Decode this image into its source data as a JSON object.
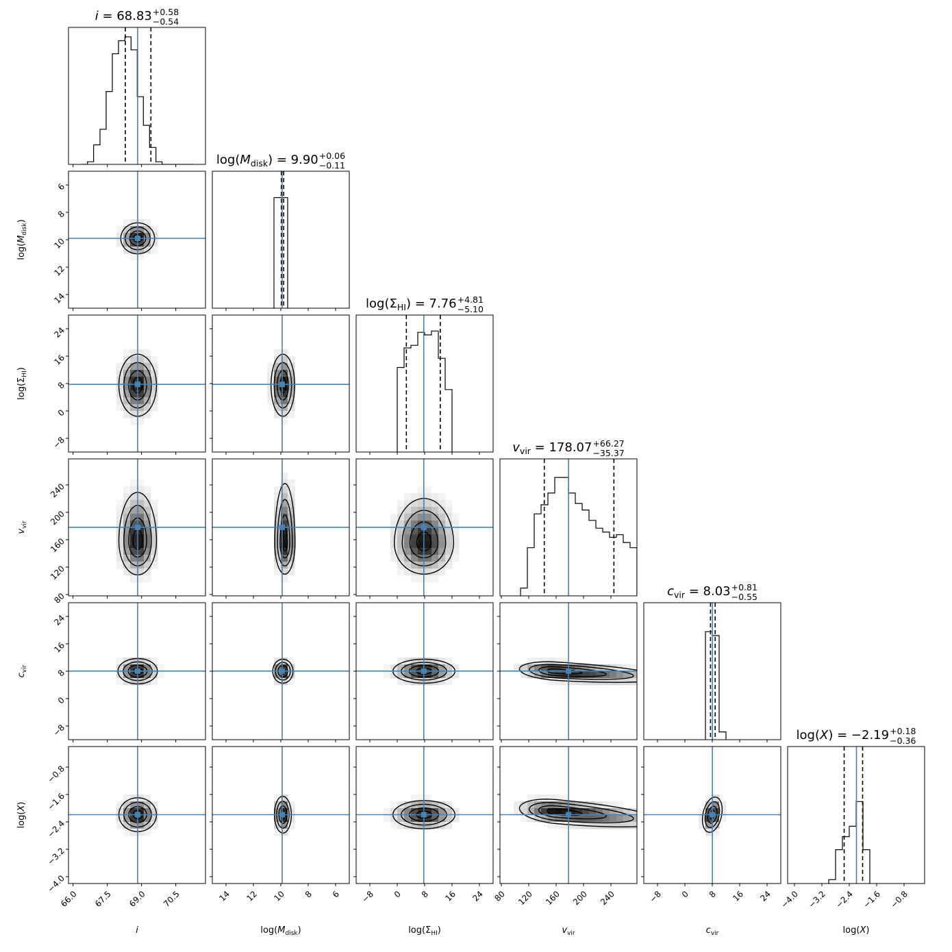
{
  "chart_data": {
    "type": "corner",
    "truth_color": "#4682b4",
    "params": [
      {
        "key": "i",
        "sym": "i",
        "italic": true,
        "sub": "",
        "wrap": "",
        "ticks": [
          66.0,
          67.5,
          69.0,
          70.5
        ],
        "tick_labels": [
          "66.0",
          "67.5",
          "69.0",
          "70.5"
        ],
        "range": [
          65.8,
          71.8
        ],
        "inverted": false,
        "truth": 68.83,
        "median": "68.83",
        "plus": "+0.58",
        "minus": "−0.54",
        "q": [
          68.29,
          69.41
        ],
        "sigma": 0.56,
        "hist_edges": [
          66.36,
          66.63,
          66.9,
          67.18,
          67.45,
          67.72,
          67.99,
          68.27,
          68.54,
          68.81,
          69.08,
          69.35,
          69.63,
          69.9,
          70.17,
          70.44,
          70.71,
          70.98,
          71.26
        ],
        "hist": [
          0.0,
          0.02,
          0.15,
          0.27,
          0.56,
          0.85,
          0.95,
          0.98,
          0.88,
          0.52,
          0.3,
          0.13,
          0.02,
          0.0,
          0.0,
          0.0,
          0.0,
          0.0
        ]
      },
      {
        "key": "mdisk",
        "sym": "M",
        "italic": true,
        "sub": "disk",
        "wrap": "log",
        "ticks": [
          14,
          12,
          10,
          8,
          6
        ],
        "tick_labels": [
          "14",
          "12",
          "10",
          "8",
          "6"
        ],
        "range": [
          15.0,
          5.0
        ],
        "inverted": true,
        "truth": 9.9,
        "median": "9.90",
        "plus": "+0.06",
        "minus": "−0.11",
        "q": [
          9.79,
          9.96
        ],
        "sigma": 0.35,
        "hist_edges": [
          10.5,
          10.0,
          9.5
        ],
        "hist": [
          0.85,
          0.85
        ]
      },
      {
        "key": "sigmahi",
        "sym": "Σ",
        "italic": false,
        "sub": "HI",
        "wrap": "log",
        "ticks": [
          -8,
          0,
          8,
          16,
          24
        ],
        "tick_labels": [
          "−8",
          "0",
          "8",
          "16",
          "24"
        ],
        "range": [
          -12,
          28
        ],
        "inverted": false,
        "truth": 7.76,
        "median": "7.76",
        "plus": "+4.81",
        "minus": "−5.10",
        "q": [
          2.66,
          12.57
        ],
        "sigma": 4.9,
        "hist_edges": [
          0.0,
          2.0,
          4.0,
          6.0,
          8.0,
          10.0,
          12.0,
          14.0,
          16.0
        ],
        "hist": [
          0.65,
          0.8,
          0.82,
          0.92,
          0.9,
          0.93,
          0.72,
          0.48
        ]
      },
      {
        "key": "vvir",
        "sym": "v",
        "italic": true,
        "sub": "vir",
        "wrap": "",
        "ticks": [
          80,
          120,
          160,
          200,
          240
        ],
        "tick_labels": [
          "80",
          "120",
          "160",
          "200",
          "240"
        ],
        "range": [
          78,
          278
        ],
        "inverted": false,
        "truth": 178.07,
        "median": "178.07",
        "plus": "+66.27",
        "minus": "−35.37",
        "q": [
          142.7,
          244.34
        ],
        "sigma": 25,
        "hist_edges": [
          108,
          118,
          128,
          138,
          148,
          158,
          168,
          178,
          188,
          198,
          208,
          218,
          228,
          238,
          248,
          258,
          268,
          278
        ],
        "hist": [
          0.06,
          0.37,
          0.63,
          0.7,
          0.79,
          0.91,
          0.91,
          0.79,
          0.71,
          0.66,
          0.58,
          0.52,
          0.49,
          0.45,
          0.47,
          0.41,
          0.37
        ]
      },
      {
        "key": "cvir",
        "sym": "c",
        "italic": true,
        "sub": "vir",
        "wrap": "",
        "ticks": [
          -8,
          0,
          8,
          16,
          24
        ],
        "tick_labels": [
          "−8",
          "0",
          "8",
          "16",
          "24"
        ],
        "range": [
          -12,
          28
        ],
        "inverted": false,
        "truth": 8.03,
        "median": "8.03",
        "plus": "+0.81",
        "minus": "−0.55",
        "q": [
          7.48,
          8.84
        ],
        "sigma": 1.8,
        "hist_edges": [
          6.0,
          8.0,
          10.0,
          12.0
        ],
        "hist": [
          0.83,
          0.8,
          0.06
        ]
      },
      {
        "key": "logx",
        "sym": "X",
        "italic": true,
        "sub": "",
        "wrap": "log",
        "ticks": [
          -4.0,
          -3.2,
          -2.4,
          -1.6,
          -0.8
        ],
        "tick_labels": [
          "−4.0",
          "−3.2",
          "−2.4",
          "−1.6",
          "−0.8"
        ],
        "range": [
          -4.2,
          -0.2
        ],
        "inverted": false,
        "truth": -2.19,
        "median": "−2.19",
        "plus": "+0.18",
        "minus": "−0.36",
        "q": [
          -2.55,
          -2.01
        ],
        "sigma": 0.22,
        "hist_edges": [
          -3.0,
          -2.8,
          -2.6,
          -2.4,
          -2.2,
          -2.0,
          -1.8
        ],
        "hist": [
          0.03,
          0.26,
          0.36,
          0.44,
          0.63,
          0.26
        ]
      }
    ],
    "contours": {
      "mdisk|i": {
        "cx": 68.83,
        "cy": 9.9,
        "sx": 0.36,
        "sy": 0.55
      },
      "sigmahi|i": {
        "cx": 68.83,
        "cy": 7.5,
        "sx": 0.4,
        "sy": 4.4
      },
      "sigmahi|mdisk": {
        "cx": 9.85,
        "cy": 7.5,
        "sx": 0.42,
        "sy": 4.4
      },
      "vvir|i": {
        "cx": 68.83,
        "cy": 158,
        "sx": 0.4,
        "sy": 24,
        "skew": 0.9
      },
      "vvir|mdisk": {
        "cx": 9.7,
        "cy": 155,
        "sx": 0.36,
        "sy": 22,
        "skew": 1.2,
        "tilt": -0.006
      },
      "vvir|sigmahi": {
        "cx": 7.8,
        "cy": 155,
        "sx": 4.2,
        "sy": 22,
        "skew": 0.9
      },
      "cvir|i": {
        "cx": 68.83,
        "cy": 8.0,
        "sx": 0.42,
        "sy": 1.8
      },
      "cvir|mdisk": {
        "cx": 9.85,
        "cy": 8.0,
        "sx": 0.36,
        "sy": 1.7
      },
      "cvir|sigmahi": {
        "cx": 7.8,
        "cy": 8.0,
        "sx": 4.4,
        "sy": 1.7
      },
      "cvir|vvir": {
        "cx": 160,
        "cy": 8.0,
        "sx": 26,
        "sy": 1.3,
        "skewx": 1.6,
        "tilt": -0.012
      },
      "logx|i": {
        "cx": 68.83,
        "cy": -2.19,
        "sx": 0.4,
        "sy": 0.24
      },
      "logx|mdisk": {
        "cx": 9.85,
        "cy": -2.19,
        "sx": 0.3,
        "sy": 0.26,
        "tilt": 0.012
      },
      "logx|sigmahi": {
        "cx": 7.8,
        "cy": -2.19,
        "sx": 4.4,
        "sy": 0.2
      },
      "logx|vvir": {
        "cx": 160,
        "cy": -2.1,
        "sx": 26,
        "sy": 0.17,
        "skewx": 1.6,
        "tilt": -0.0018
      },
      "logx|cvir": {
        "cx": 8.0,
        "cy": -2.19,
        "sx": 1.4,
        "sy": 0.24,
        "tilt": 0.05
      }
    }
  }
}
